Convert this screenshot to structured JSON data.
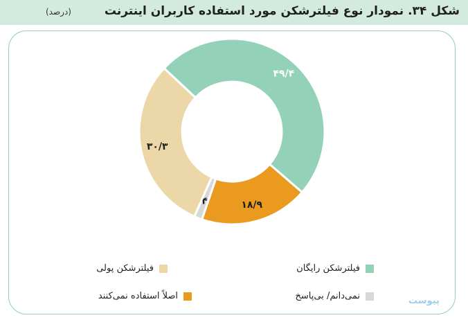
{
  "title": {
    "main": "شکل ۳۴. نمودار نوع فیلترشکن مورد استفاده کاربران اینترنت",
    "unit": "(درصد)"
  },
  "chart_data": {
    "type": "pie",
    "donut": true,
    "title": "شکل ۳۴. نمودار نوع فیلترشکن مورد استفاده کاربران اینترنت",
    "unit": "(درصد)",
    "slices": [
      {
        "label": "فیلترشکن رایگان",
        "value": 49.4,
        "value_label": "۴۹/۴",
        "color": "#93d2b8"
      },
      {
        "label": "اصلاً استفاده نمی‌کنند",
        "value": 18.9,
        "value_label": "۱۸/۹",
        "color": "#e99a1f"
      },
      {
        "label": "نمی‌دانم/ بی‌پاسخ",
        "value": 1.4,
        "value_label": "۱/۴",
        "color": "#d8d8d8"
      },
      {
        "label": "فیلترشکن پولی",
        "value": 30.3,
        "value_label": "۳۰/۳",
        "color": "#ebd7a8"
      }
    ],
    "legend_position": "bottom"
  },
  "legend": [
    {
      "label": "فیلترشکن رایگان",
      "color": "#93d2b8"
    },
    {
      "label": "فیلترشکن پولی",
      "color": "#ebd7a8"
    },
    {
      "label": "نمی‌دانم/ بی‌پاسخ",
      "color": "#d8d8d8"
    },
    {
      "label": "اصلاً استفاده نمی‌کنند",
      "color": "#e99a1f"
    }
  ],
  "watermark": "پیوست"
}
